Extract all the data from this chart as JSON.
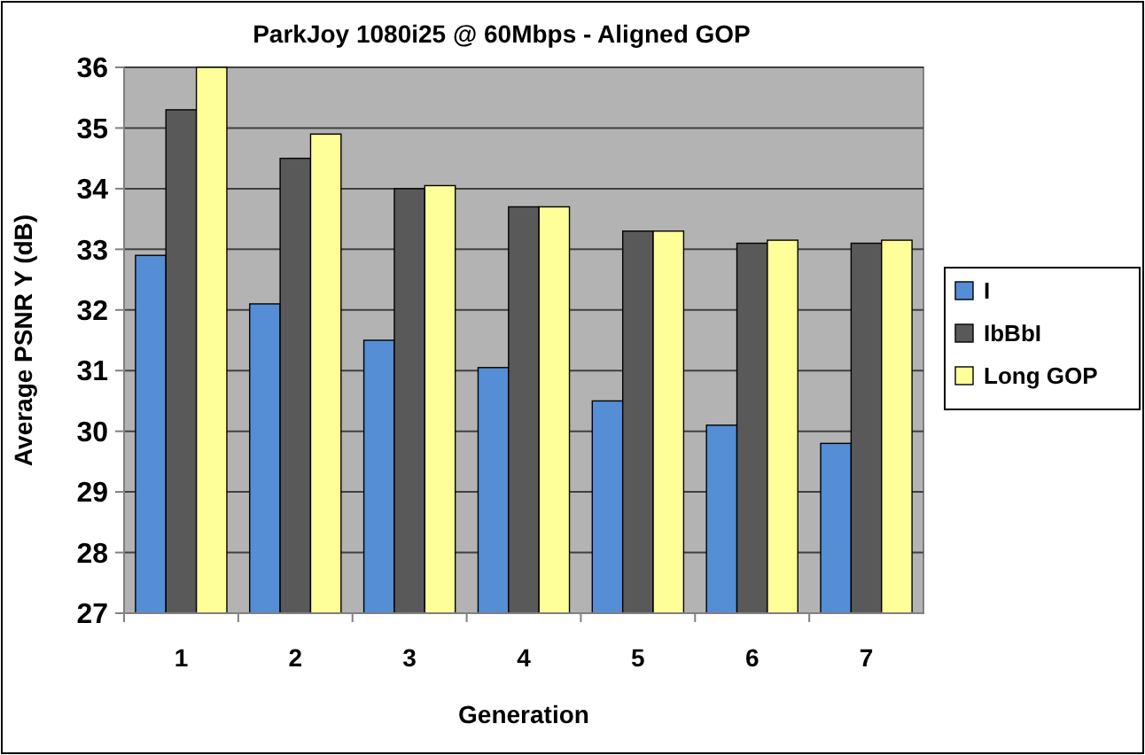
{
  "chart_data": {
    "type": "bar",
    "title": "ParkJoy 1080i25 @ 60Mbps - Aligned GOP",
    "xlabel": "Generation",
    "ylabel": "Average PSNR Y (dB)",
    "categories": [
      "1",
      "2",
      "3",
      "4",
      "5",
      "6",
      "7"
    ],
    "series": [
      {
        "name": "I",
        "color": "#558ed5",
        "values": [
          32.9,
          32.1,
          31.5,
          31.05,
          30.5,
          30.1,
          29.8
        ]
      },
      {
        "name": "IbBbI",
        "color": "#595959",
        "values": [
          35.3,
          34.5,
          34.0,
          33.7,
          33.3,
          33.1,
          33.1
        ]
      },
      {
        "name": "Long GOP",
        "color": "#ffff99",
        "values": [
          36.0,
          34.9,
          34.05,
          33.7,
          33.3,
          33.15,
          33.15
        ]
      }
    ],
    "ylim": [
      27,
      36
    ],
    "yticks": [
      27,
      28,
      29,
      30,
      31,
      32,
      33,
      34,
      35,
      36
    ],
    "grid": "y",
    "legend": "right"
  }
}
